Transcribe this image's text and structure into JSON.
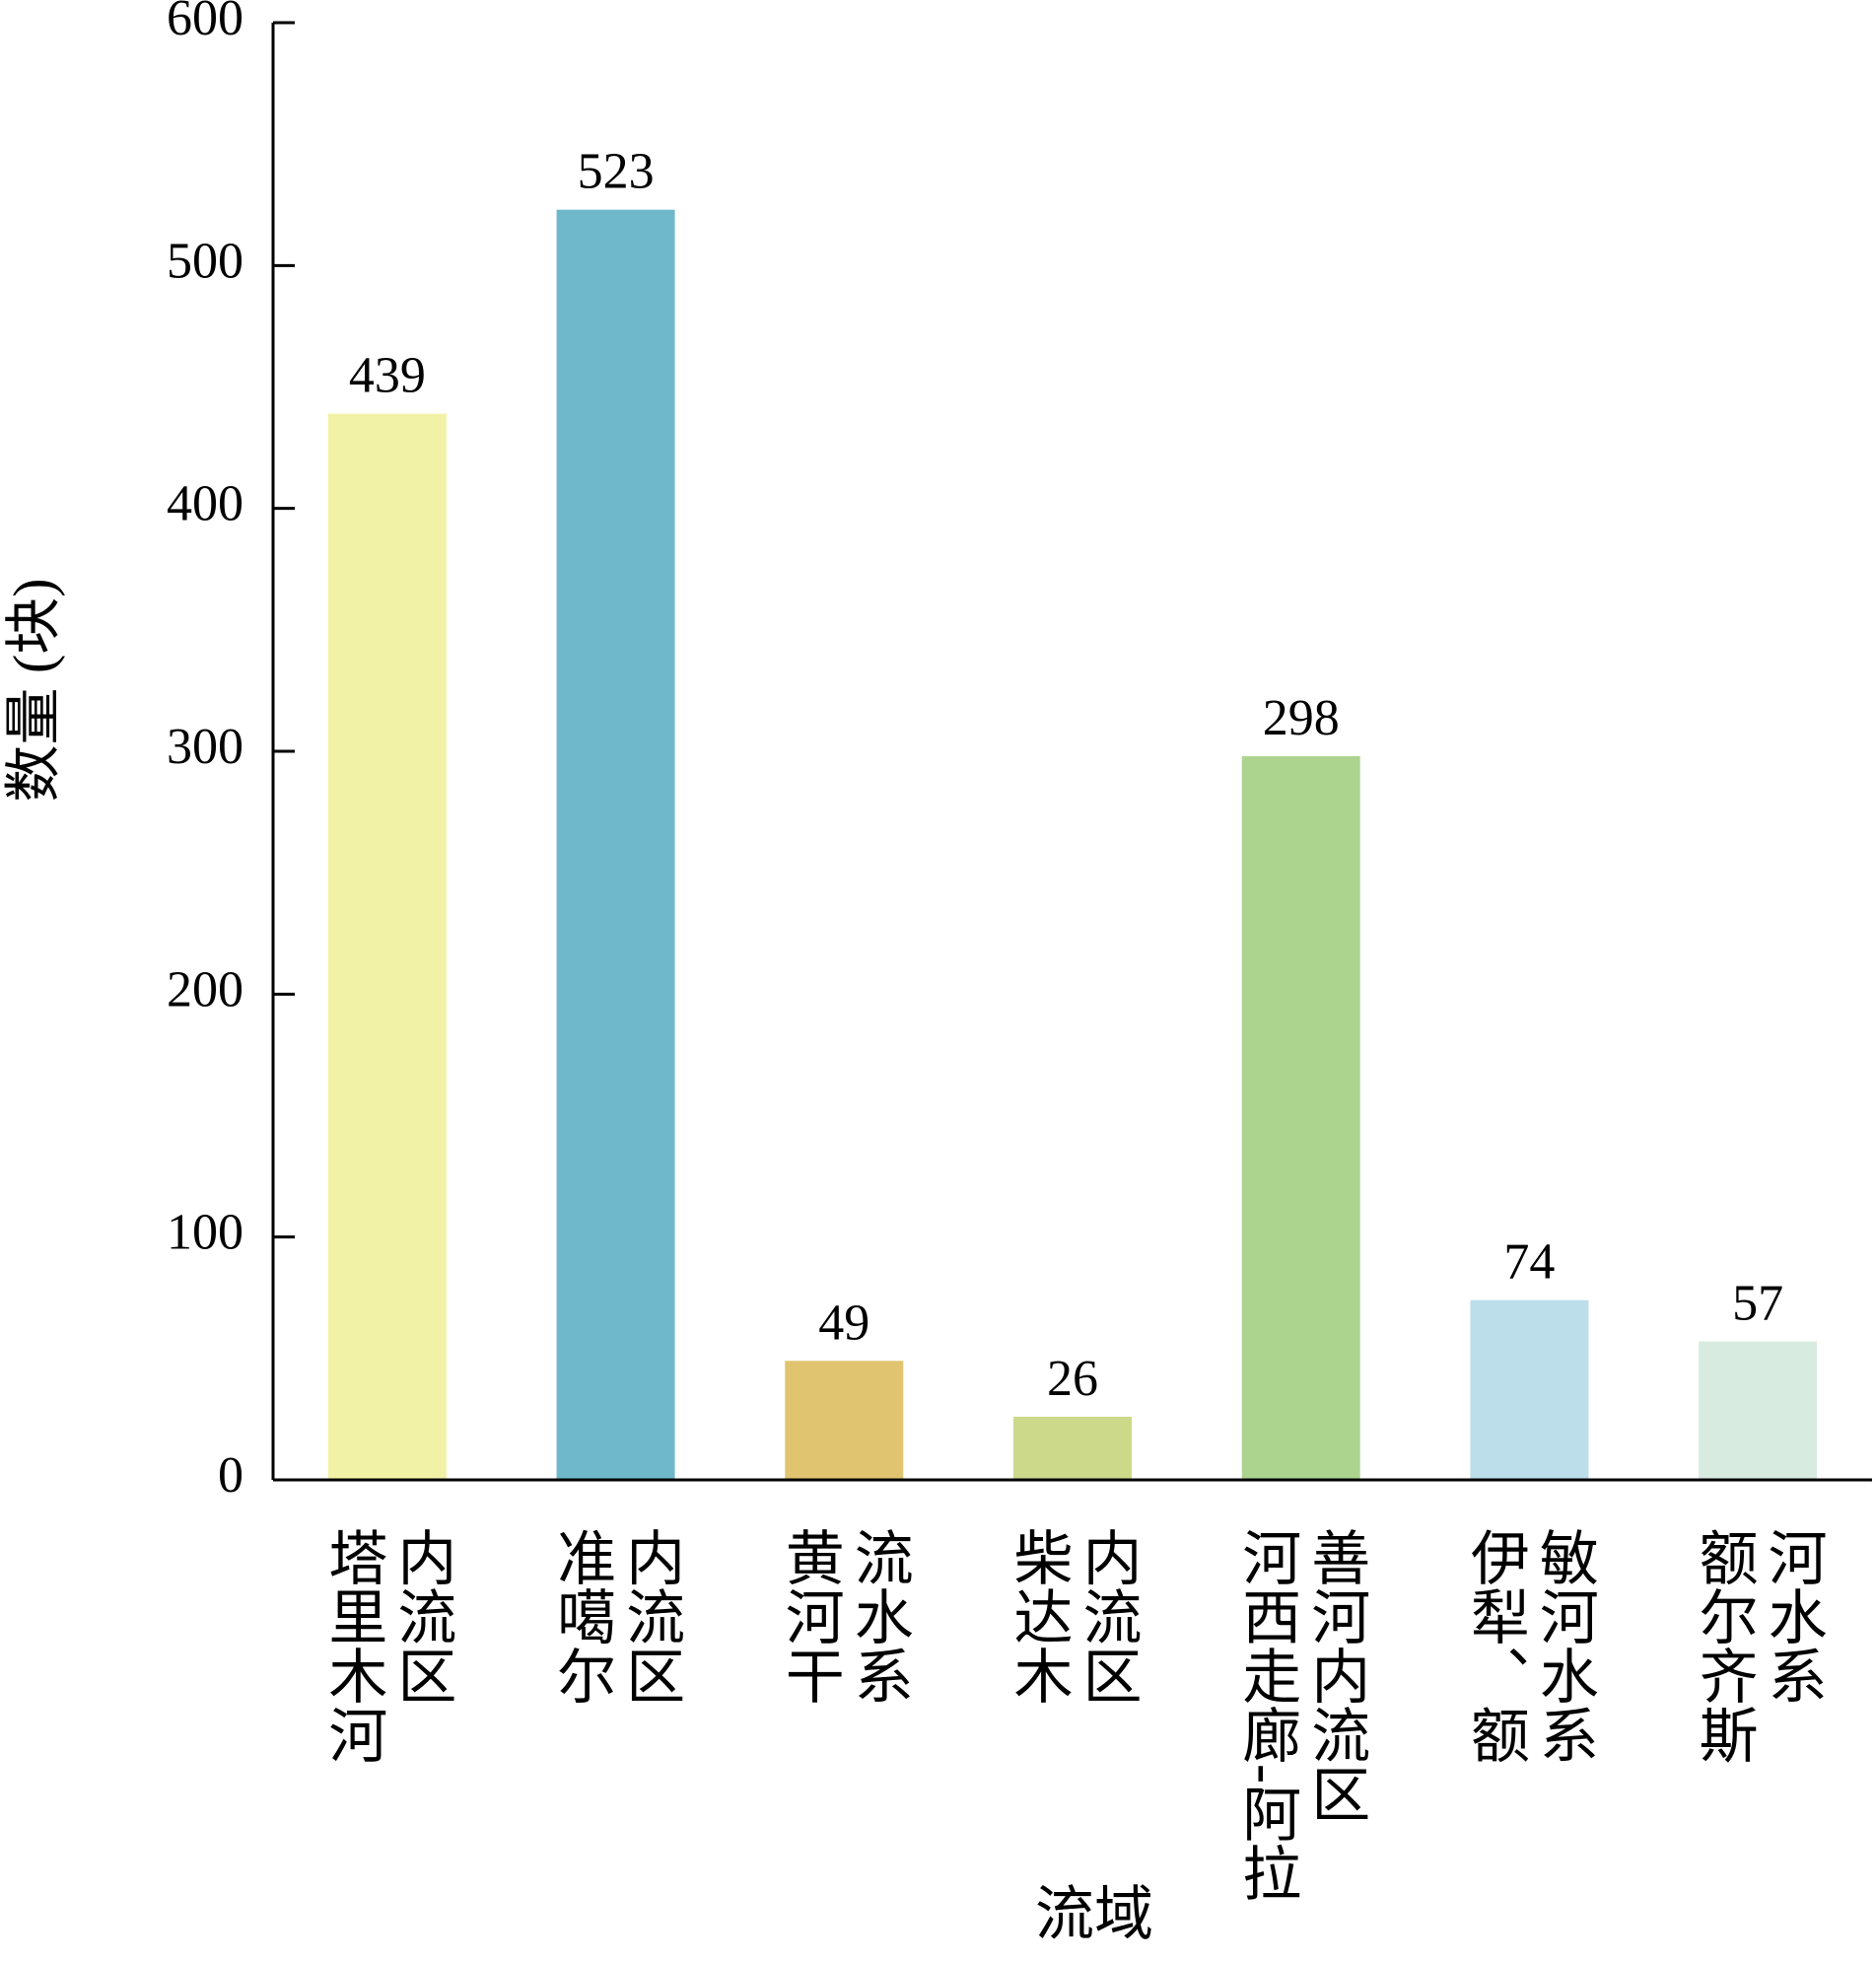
{
  "chart_data": {
    "type": "bar",
    "x_label": "流域",
    "y_label": "数量 (块)",
    "categories": [
      [
        "塔里木河",
        "内流区"
      ],
      [
        "准噶尔",
        "内流区"
      ],
      [
        "黄河干",
        "流水系"
      ],
      [
        "柴达木",
        "内流区"
      ],
      [
        "河西走廊-阿拉",
        "善河内流区"
      ],
      [
        "伊犁、额",
        "敏河水系"
      ],
      [
        "额尔齐斯",
        "河水系"
      ]
    ],
    "values": [
      439,
      523,
      49,
      26,
      298,
      74,
      57
    ],
    "colors": [
      "#f2f2a6",
      "#6fb8cc",
      "#e0c46f",
      "#ccd98a",
      "#acd48f",
      "#bcdeea",
      "#d8ebe0"
    ],
    "ylim": [
      0,
      600
    ],
    "yticks": [
      0,
      100,
      200,
      300,
      400,
      500,
      600
    ],
    "grid": false
  }
}
